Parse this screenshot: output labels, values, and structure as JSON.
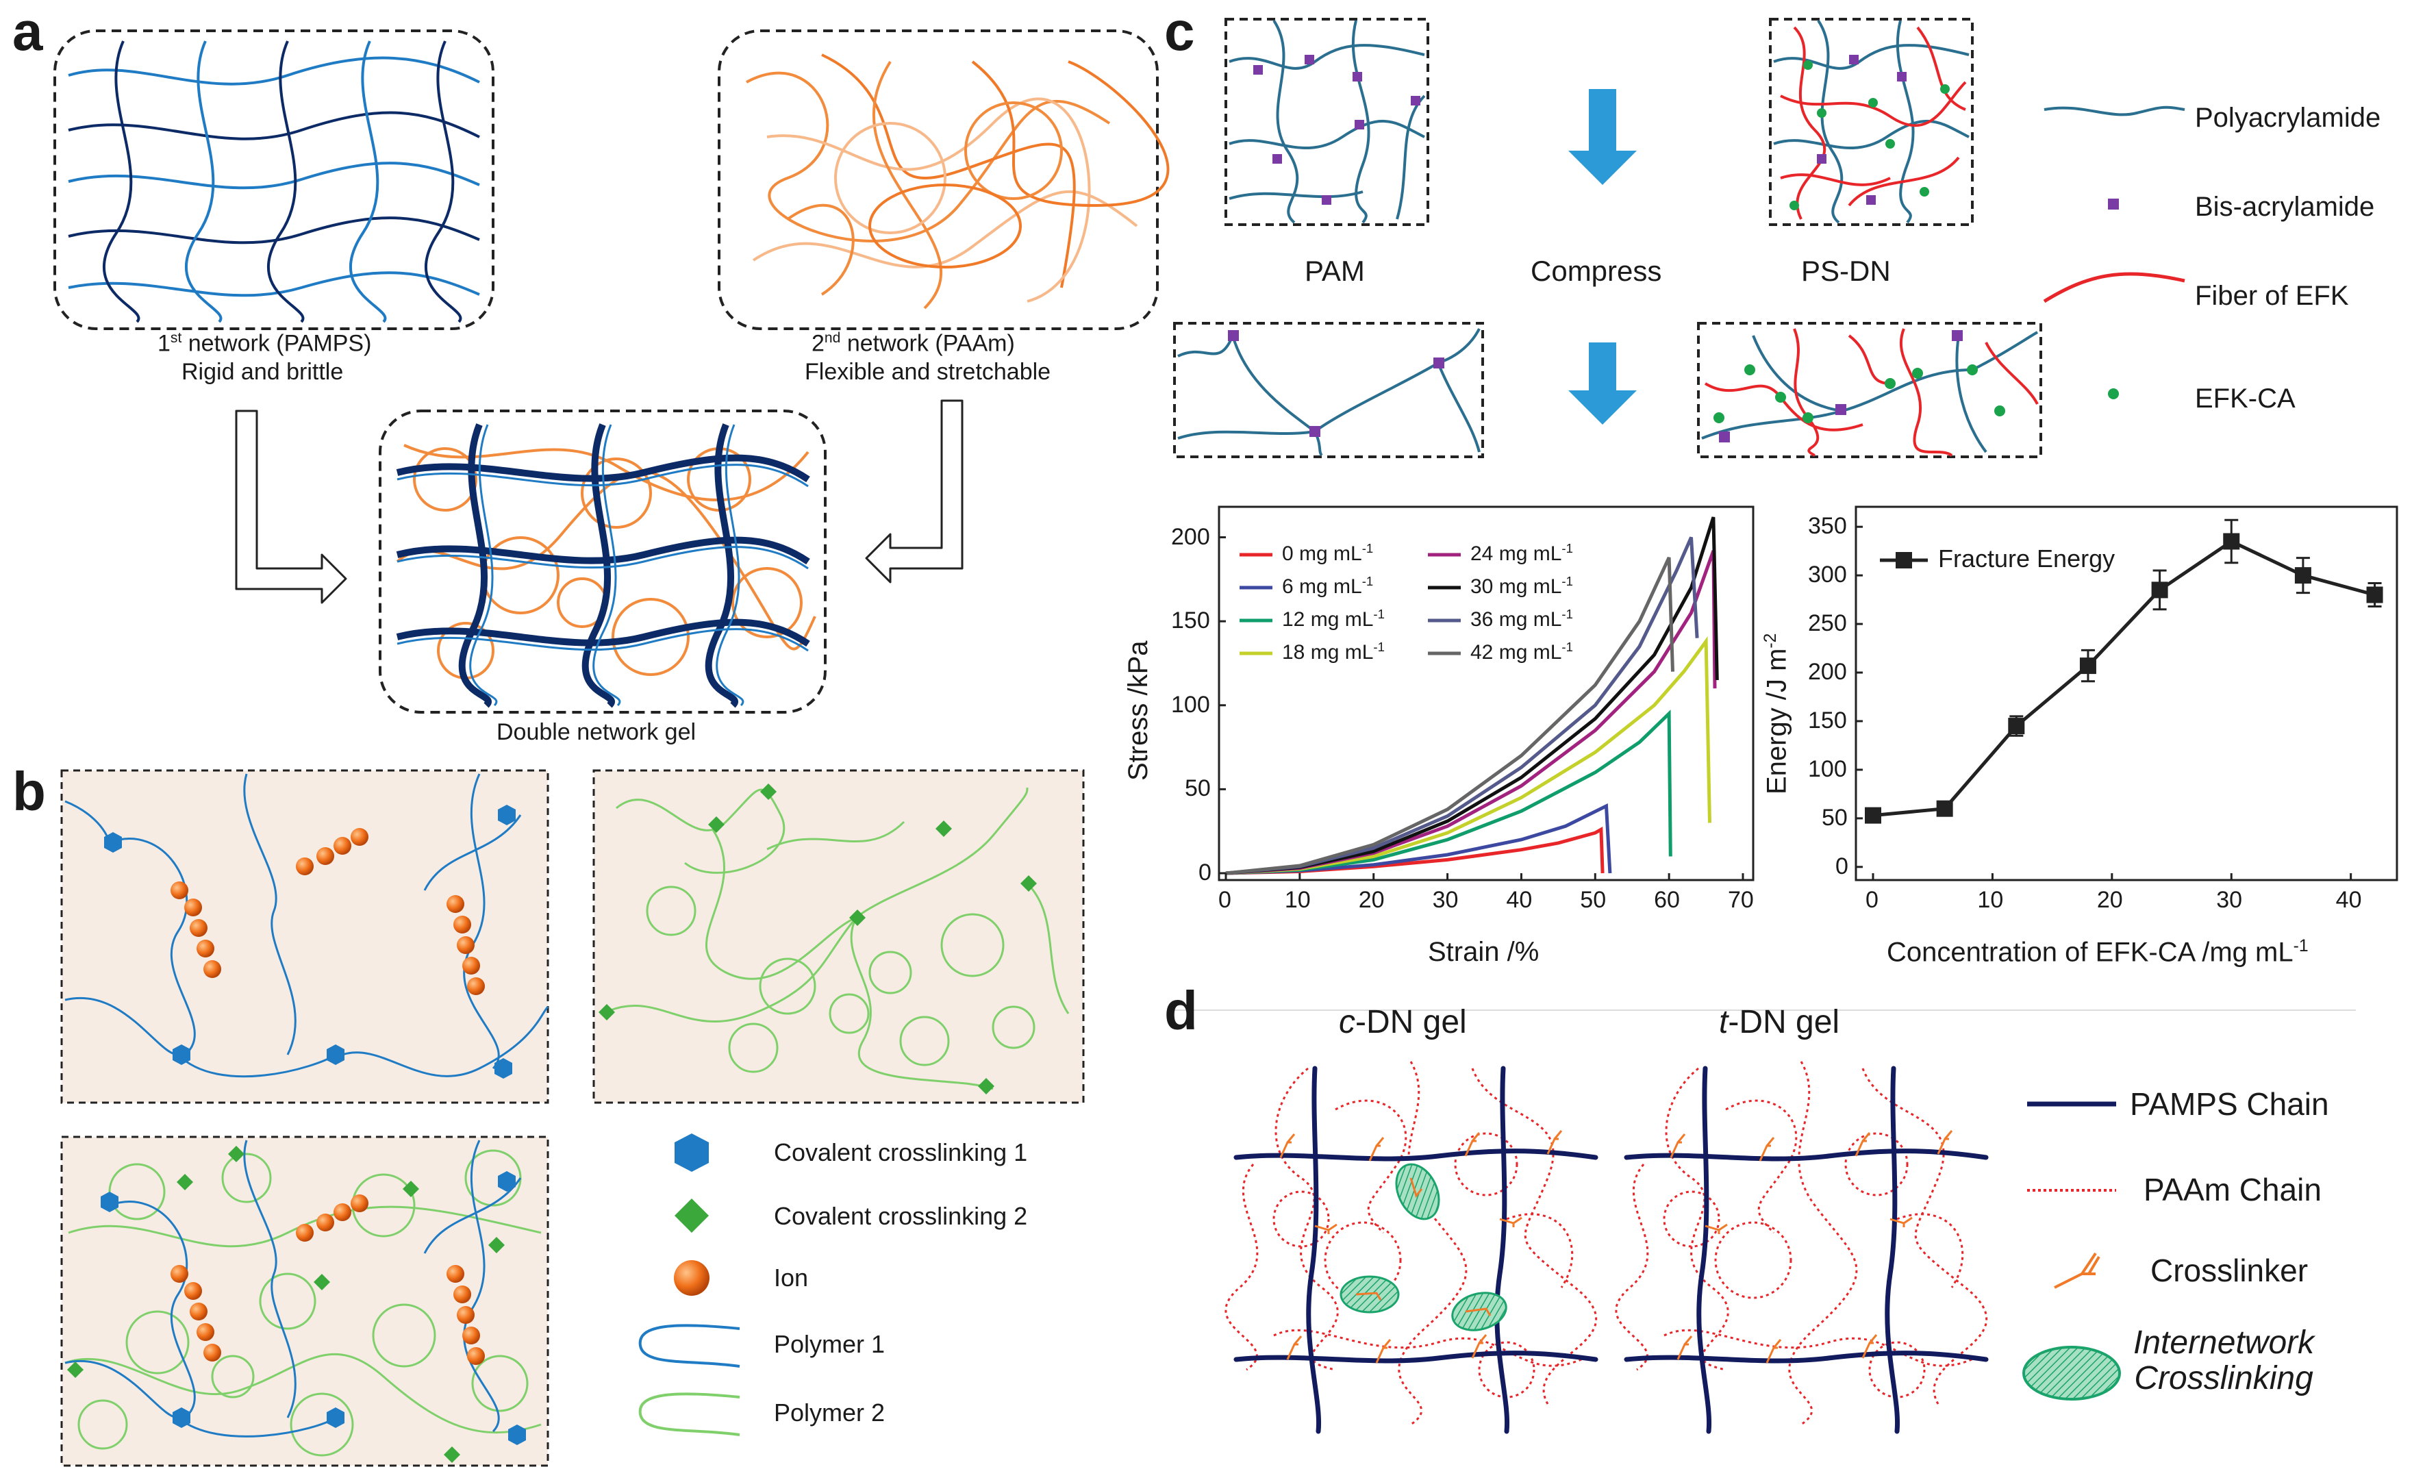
{
  "panels": {
    "a": {
      "letter": "a",
      "first_network": {
        "sup": "st",
        "num": "1",
        "rest": " network (PAMPS)",
        "sub": "Rigid and brittle"
      },
      "second_network": {
        "sup": "nd",
        "num": "2",
        "rest": " network (PAAm)",
        "sub": "Flexible and stretchable"
      },
      "double_network": "Double network gel"
    },
    "b": {
      "letter": "b",
      "legend": [
        {
          "label": "Covalent crosslinking 1",
          "icon": "blue-hexagon"
        },
        {
          "label": "Covalent crosslinking 2",
          "icon": "green-diamond"
        },
        {
          "label": "Ion",
          "icon": "orange-sphere"
        },
        {
          "label": "Polymer 1",
          "icon": "blue-loop"
        },
        {
          "label": "Polymer 2",
          "icon": "green-loop"
        }
      ]
    },
    "c": {
      "letter": "c",
      "labels": {
        "pam": "PAM",
        "compress": "Compress",
        "psdn": "PS-DN"
      },
      "legend": [
        {
          "label": "Polyacrylamide",
          "icon": "teal-wave"
        },
        {
          "label": "Bis-acrylamide",
          "icon": "purple-square"
        },
        {
          "label": "Fiber of EFK",
          "icon": "red-fiber"
        },
        {
          "label": "EFK-CA",
          "icon": "green-dot"
        }
      ]
    },
    "d": {
      "letter": "d",
      "c_dn": {
        "italic": "c",
        "rest": "-DN gel"
      },
      "t_dn": {
        "italic": "t",
        "rest": "-DN gel"
      },
      "legend": [
        {
          "label": "PAMPS Chain",
          "icon": "navy-line"
        },
        {
          "label": "PAAm Chain",
          "icon": "red-dotted-line"
        },
        {
          "label": "Crosslinker",
          "icon": "crosslinker-icon"
        },
        {
          "label_line1": "Internetwork",
          "label_line2": "Crosslinking",
          "icon": "green-ellipse"
        }
      ]
    }
  },
  "chart_data": [
    {
      "type": "line",
      "xlabel": "Strain /%",
      "ylabel": "Stress /kPa",
      "xlim": [
        0,
        70
      ],
      "ylim": [
        0,
        210
      ],
      "xticks": [
        "0",
        "10",
        "20",
        "30",
        "40",
        "50",
        "60",
        "70"
      ],
      "yticks": [
        "0",
        "50",
        "100",
        "150",
        "200"
      ],
      "legend_unit": "mg mL",
      "legend_sup": "-1",
      "series": [
        {
          "name": "0",
          "color": "#e8262a",
          "values": [
            [
              0,
              0
            ],
            [
              10,
              1
            ],
            [
              20,
              4
            ],
            [
              30,
              8
            ],
            [
              40,
              14
            ],
            [
              45,
              18
            ],
            [
              50,
              24
            ],
            [
              50.8,
              26
            ],
            [
              51,
              0
            ]
          ]
        },
        {
          "name": "6",
          "color": "#3d49a0",
          "values": [
            [
              0,
              0
            ],
            [
              10,
              1.5
            ],
            [
              20,
              5
            ],
            [
              30,
              11
            ],
            [
              40,
              20
            ],
            [
              46,
              28
            ],
            [
              51.5,
              40
            ],
            [
              52,
              0
            ]
          ]
        },
        {
          "name": "12",
          "color": "#0f9d6b",
          "values": [
            [
              0,
              0
            ],
            [
              10,
              2
            ],
            [
              20,
              8
            ],
            [
              30,
              20
            ],
            [
              40,
              37
            ],
            [
              50,
              60
            ],
            [
              56,
              78
            ],
            [
              60,
              95
            ],
            [
              60.2,
              10
            ]
          ]
        },
        {
          "name": "18",
          "color": "#c4d12a",
          "values": [
            [
              0,
              0
            ],
            [
              10,
              2.5
            ],
            [
              20,
              10
            ],
            [
              30,
              24
            ],
            [
              40,
              45
            ],
            [
              50,
              72
            ],
            [
              58,
              100
            ],
            [
              62,
              120
            ],
            [
              65,
              138
            ],
            [
              65.5,
              30
            ]
          ]
        },
        {
          "name": "24",
          "color": "#a2237f",
          "values": [
            [
              0,
              0
            ],
            [
              10,
              3
            ],
            [
              20,
              12
            ],
            [
              30,
              28
            ],
            [
              40,
              52
            ],
            [
              50,
              85
            ],
            [
              58,
              120
            ],
            [
              63,
              155
            ],
            [
              66,
              192
            ],
            [
              66.2,
              110
            ]
          ]
        },
        {
          "name": "30",
          "color": "#111111",
          "values": [
            [
              0,
              0
            ],
            [
              10,
              3.5
            ],
            [
              20,
              13
            ],
            [
              30,
              31
            ],
            [
              40,
              57
            ],
            [
              50,
              92
            ],
            [
              58,
              130
            ],
            [
              63,
              170
            ],
            [
              66,
              212
            ],
            [
              66.5,
              115
            ]
          ]
        },
        {
          "name": "36",
          "color": "#555a8c",
          "values": [
            [
              0,
              0
            ],
            [
              10,
              4
            ],
            [
              20,
              15
            ],
            [
              30,
              34
            ],
            [
              40,
              63
            ],
            [
              50,
              100
            ],
            [
              56,
              135
            ],
            [
              61,
              180
            ],
            [
              63,
              200
            ],
            [
              63.8,
              140
            ]
          ]
        },
        {
          "name": "42",
          "color": "#666666",
          "values": [
            [
              0,
              0
            ],
            [
              10,
              4.5
            ],
            [
              20,
              17
            ],
            [
              30,
              38
            ],
            [
              40,
              70
            ],
            [
              50,
              112
            ],
            [
              56,
              150
            ],
            [
              60,
              188
            ],
            [
              60.5,
              120
            ]
          ]
        }
      ]
    },
    {
      "type": "line",
      "xlabel": "Concentration of EFK-CA /mg mL",
      "xlabel_sup": "-1",
      "ylabel": "Energy /J m",
      "ylabel_sup": "-2",
      "xlim": [
        0,
        43
      ],
      "ylim": [
        -10,
        360
      ],
      "xticks": [
        "0",
        "10",
        "20",
        "30",
        "40"
      ],
      "yticks": [
        "0",
        "50",
        "100",
        "150",
        "200",
        "250",
        "300",
        "350"
      ],
      "legend": "Fracture Energy",
      "series": [
        {
          "name": "Fracture Energy",
          "x": [
            0,
            6,
            12,
            18,
            24,
            30,
            36,
            42
          ],
          "y": [
            53,
            60,
            145,
            207,
            285,
            335,
            300,
            280
          ],
          "err": [
            4,
            5,
            10,
            16,
            20,
            22,
            18,
            12
          ]
        }
      ]
    }
  ]
}
